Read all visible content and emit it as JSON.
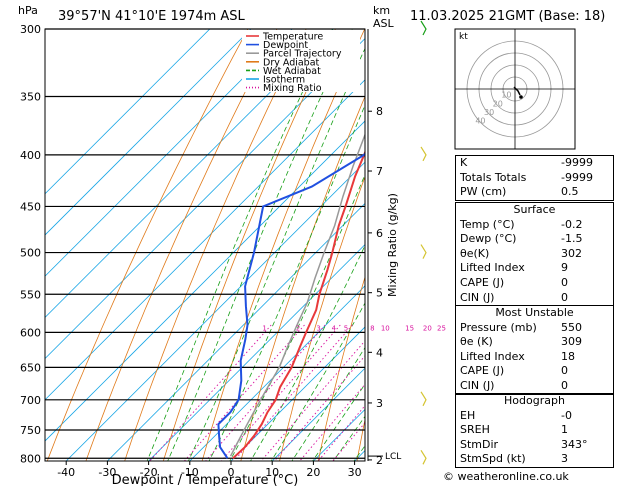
{
  "header": {
    "location": "39°57'N  41°10'E  1974m  ASL",
    "datetime": "11.03.2025  21GMT  (Base: 18)",
    "left_unit": "hPa",
    "right_unit_km": "km",
    "right_unit_asl": "ASL"
  },
  "chart_data": {
    "type": "line",
    "xlabel": "Dewpoint / Temperature (°C)",
    "ylabel": "hPa",
    "right_label": "Mixing Ratio (g/kg)",
    "xlim": [
      -45,
      33
    ],
    "ylim": [
      805,
      300
    ],
    "pressure_ticks": [
      300,
      350,
      400,
      450,
      500,
      550,
      600,
      650,
      700,
      750,
      800
    ],
    "temperature_ticks": [
      -40,
      -30,
      -20,
      -10,
      0,
      10,
      20,
      30
    ],
    "km_ticks": [
      {
        "label": "8",
        "p": 362
      },
      {
        "label": "7",
        "p": 415
      },
      {
        "label": "6",
        "p": 478
      },
      {
        "label": "5",
        "p": 548
      },
      {
        "label": "4",
        "p": 628
      },
      {
        "label": "3",
        "p": 705
      },
      {
        "label": "2",
        "p": 803
      }
    ],
    "lcl": {
      "label": "LCL",
      "p": 796
    },
    "mixing_ratio_labels": [
      "1",
      "2",
      "3",
      "4",
      "5",
      "8",
      "10",
      "15",
      "20",
      "25"
    ],
    "legend": [
      "Temperature",
      "Dewpoint",
      "Parcel Trajectory",
      "Dry Adiabat",
      "Wet Adiabat",
      "Isotherm",
      "Mixing Ratio"
    ],
    "legend_colors": [
      "#e8393a",
      "#2050e0",
      "#999999",
      "#e07a1a",
      "#19a019",
      "#19a6e6",
      "#d8119e"
    ],
    "series": [
      {
        "name": "Temperature",
        "points": [
          [
            -0.2,
            800
          ],
          [
            0,
            780
          ],
          [
            -0.5,
            760
          ],
          [
            -1.5,
            740
          ],
          [
            -3,
            720
          ],
          [
            -4,
            700
          ],
          [
            -6,
            680
          ],
          [
            -8,
            650
          ],
          [
            -11,
            620
          ],
          [
            -13,
            600
          ],
          [
            -16,
            570
          ],
          [
            -19,
            550
          ],
          [
            -23,
            520
          ],
          [
            -26,
            500
          ],
          [
            -31,
            470
          ],
          [
            -34,
            450
          ],
          [
            -39,
            420
          ],
          [
            -42,
            400
          ],
          [
            -47,
            370
          ],
          [
            -51,
            350
          ],
          [
            -57,
            320
          ],
          [
            -61,
            300
          ]
        ]
      },
      {
        "name": "Dewpoint",
        "points": [
          [
            -1.5,
            800
          ],
          [
            -6,
            780
          ],
          [
            -9,
            760
          ],
          [
            -12,
            740
          ],
          [
            -12,
            720
          ],
          [
            -13,
            700
          ],
          [
            -17,
            670
          ],
          [
            -22,
            640
          ],
          [
            -26,
            610
          ],
          [
            -29,
            590
          ],
          [
            -34,
            565
          ],
          [
            -39,
            540
          ],
          [
            -45,
            500
          ],
          [
            -54,
            450
          ],
          [
            -47,
            430
          ],
          [
            -42,
            400
          ],
          [
            -44,
            370
          ],
          [
            -45,
            350
          ],
          [
            -47,
            300
          ]
        ]
      },
      {
        "name": "Parcel Trajectory",
        "points": [
          [
            -1.3,
            796
          ],
          [
            -3,
            770
          ],
          [
            -5,
            740
          ],
          [
            -7,
            710
          ],
          [
            -9,
            680
          ],
          [
            -11,
            650
          ],
          [
            -14,
            620
          ],
          [
            -17,
            590
          ],
          [
            -20,
            560
          ],
          [
            -24,
            530
          ],
          [
            -28,
            500
          ],
          [
            -32,
            470
          ],
          [
            -37,
            440
          ],
          [
            -42,
            410
          ],
          [
            -47,
            380
          ],
          [
            -53,
            350
          ],
          [
            -59,
            320
          ],
          [
            -63,
            300
          ]
        ]
      }
    ],
    "hodograph": {
      "ring_labels": [
        "10",
        "20",
        "30",
        "40"
      ],
      "label": "kt"
    }
  },
  "indices": {
    "rows": [
      {
        "label": "K",
        "value": "-9999"
      },
      {
        "label": "Totals Totals",
        "value": "-9999"
      },
      {
        "label": "PW (cm)",
        "value": "0.5"
      }
    ]
  },
  "surface": {
    "title": "Surface",
    "rows": [
      {
        "label": "Temp (°C)",
        "value": "-0.2"
      },
      {
        "label": "Dewp (°C)",
        "value": "-1.5"
      },
      {
        "label": "θe(K)",
        "value": "302"
      },
      {
        "label": "Lifted Index",
        "value": "9"
      },
      {
        "label": "CAPE (J)",
        "value": "0"
      },
      {
        "label": "CIN (J)",
        "value": "0"
      }
    ]
  },
  "unstable": {
    "title": "Most Unstable",
    "rows": [
      {
        "label": "Pressure (mb)",
        "value": "550"
      },
      {
        "label": "θe (K)",
        "value": "309"
      },
      {
        "label": "Lifted Index",
        "value": "18"
      },
      {
        "label": "CAPE (J)",
        "value": "0"
      },
      {
        "label": "CIN (J)",
        "value": "0"
      }
    ]
  },
  "hodograph_table": {
    "title": "Hodograph",
    "rows": [
      {
        "label": "EH",
        "value": "-0"
      },
      {
        "label": "SREH",
        "value": "1"
      },
      {
        "label": "StmDir",
        "value": "343°"
      },
      {
        "label": "StmSpd (kt)",
        "value": "3"
      }
    ]
  },
  "footer": {
    "credit": "© weatheronline.co.uk"
  }
}
